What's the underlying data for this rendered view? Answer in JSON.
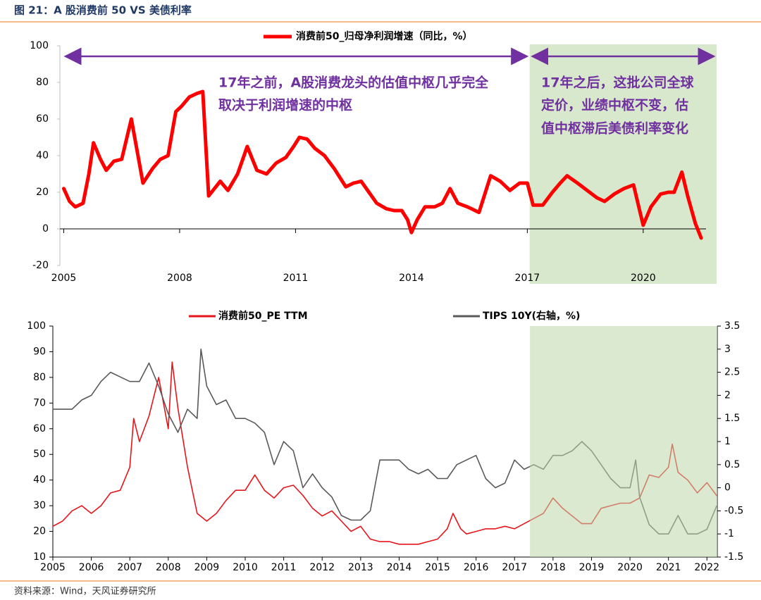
{
  "header": {
    "title": "图 21：A 股消费前 50 VS 美债利率"
  },
  "footer": {
    "source": "资料来源：Wind，天风证券研究所"
  },
  "chart_data": [
    {
      "type": "line",
      "series": [
        {
          "name": "消费前50_归母净利润增速（同比，%）",
          "color": "#ff0000",
          "x": [
            2005.0,
            2005.15,
            2005.3,
            2005.5,
            2005.65,
            2005.77,
            2005.95,
            2006.1,
            2006.3,
            2006.5,
            2006.75,
            2007.05,
            2007.3,
            2007.5,
            2007.7,
            2007.9,
            2008.05,
            2008.25,
            2008.45,
            2008.6,
            2008.75,
            2008.9,
            2009.05,
            2009.25,
            2009.5,
            2009.75,
            2010.0,
            2010.25,
            2010.5,
            2010.75,
            2010.95,
            2011.1,
            2011.3,
            2011.5,
            2011.75,
            2012.0,
            2012.3,
            2012.5,
            2012.7,
            2012.9,
            2013.1,
            2013.35,
            2013.55,
            2013.75,
            2013.9,
            2014.0,
            2014.15,
            2014.35,
            2014.6,
            2014.8,
            2015.0,
            2015.2,
            2015.45,
            2015.75,
            2016.05,
            2016.3,
            2016.55,
            2016.8,
            2017.0,
            2017.15,
            2017.4,
            2017.65,
            2017.85,
            2018.03,
            2018.3,
            2018.55,
            2018.8,
            2019.0,
            2019.25,
            2019.5,
            2019.75,
            2020.0,
            2020.2,
            2020.45,
            2020.65,
            2020.8,
            2021.0,
            2021.15,
            2021.35,
            2021.5
          ],
          "values": [
            22,
            15,
            12,
            14,
            30,
            47,
            38,
            32,
            37,
            38,
            60,
            25,
            33,
            38,
            40,
            64,
            67,
            72,
            74,
            75,
            18,
            22,
            26,
            21,
            30,
            45,
            32,
            30,
            36,
            39,
            45,
            50,
            49,
            44,
            40,
            33,
            23,
            25,
            26,
            20,
            14,
            11,
            10,
            10,
            5,
            -2,
            5,
            12,
            12,
            14,
            22,
            14,
            12,
            9,
            29,
            26,
            21,
            25,
            25,
            13,
            13,
            20,
            25,
            29,
            25,
            21,
            17,
            15,
            19,
            22,
            24,
            2,
            12,
            19,
            20,
            20,
            31,
            18,
            3,
            -5
          ]
        }
      ],
      "xlim": [
        2004.9,
        2021.9
      ],
      "ylim": [
        -20,
        100
      ],
      "xticks": [
        2005,
        2008,
        2011,
        2014,
        2017,
        2020
      ],
      "yticks": [
        -20,
        0,
        20,
        40,
        60,
        80,
        100
      ],
      "highlight": [
        2017.06,
        2021.9
      ],
      "annotations": [
        "17年之前，A股消费龙头的估值中枢几乎完全",
        "取决于利润增速的中枢",
        "17年之后，这批公司全球",
        "定价，业绩中枢不变，估",
        "值中枢滞后美债利率变化"
      ]
    },
    {
      "type": "line",
      "series": [
        {
          "name": "消费前50_PE TTM",
          "color": "#e8141b",
          "x": [
            2005.0,
            2005.25,
            2005.5,
            2005.75,
            2006.0,
            2006.25,
            2006.5,
            2006.75,
            2007.0,
            2007.1,
            2007.25,
            2007.5,
            2007.75,
            2008.0,
            2008.1,
            2008.25,
            2008.5,
            2008.75,
            2009.0,
            2009.25,
            2009.5,
            2009.75,
            2010.0,
            2010.25,
            2010.5,
            2010.75,
            2011.0,
            2011.25,
            2011.5,
            2011.75,
            2012.0,
            2012.25,
            2012.5,
            2012.75,
            2013.0,
            2013.25,
            2013.5,
            2013.75,
            2014.0,
            2014.25,
            2014.5,
            2014.75,
            2015.0,
            2015.25,
            2015.4,
            2015.6,
            2015.75,
            2016.0,
            2016.25,
            2016.5,
            2016.75,
            2017.0,
            2017.25,
            2017.5,
            2017.75,
            2018.0,
            2018.25,
            2018.5,
            2018.75,
            2019.0,
            2019.25,
            2019.5,
            2019.75,
            2020.0,
            2020.25,
            2020.5,
            2020.75,
            2021.0,
            2021.1,
            2021.25,
            2021.5,
            2021.75,
            2022.0,
            2022.25
          ],
          "values": [
            22,
            24,
            28,
            30,
            27,
            30,
            35,
            36,
            45,
            64,
            55,
            65,
            80,
            60,
            86,
            68,
            45,
            27,
            24,
            27,
            32,
            36,
            36,
            42,
            36,
            33,
            37,
            38,
            34,
            29,
            26,
            28,
            24,
            20,
            22,
            17,
            16,
            16,
            15,
            15,
            15,
            16,
            17,
            21,
            27,
            21,
            19,
            20,
            21,
            21,
            22,
            21,
            23,
            25,
            27,
            33,
            29,
            26,
            23,
            23,
            29,
            30,
            31,
            31,
            33,
            42,
            41,
            45,
            54,
            43,
            40,
            35,
            39,
            34
          ]
        },
        {
          "name": "TIPS 10Y(右轴，%)",
          "color": "#595959",
          "axis": "y2",
          "x": [
            2005.0,
            2005.25,
            2005.5,
            2005.75,
            2006.0,
            2006.25,
            2006.5,
            2006.75,
            2007.0,
            2007.25,
            2007.5,
            2007.75,
            2008.0,
            2008.25,
            2008.5,
            2008.75,
            2008.85,
            2009.0,
            2009.25,
            2009.5,
            2009.75,
            2010.0,
            2010.25,
            2010.5,
            2010.75,
            2011.0,
            2011.25,
            2011.5,
            2011.75,
            2012.0,
            2012.25,
            2012.5,
            2012.75,
            2013.0,
            2013.25,
            2013.5,
            2013.75,
            2014.0,
            2014.25,
            2014.5,
            2014.75,
            2015.0,
            2015.25,
            2015.5,
            2015.75,
            2016.0,
            2016.25,
            2016.5,
            2016.75,
            2017.0,
            2017.25,
            2017.5,
            2017.75,
            2018.0,
            2018.25,
            2018.5,
            2018.75,
            2019.0,
            2019.25,
            2019.5,
            2019.75,
            2020.0,
            2020.15,
            2020.25,
            2020.5,
            2020.75,
            2021.0,
            2021.25,
            2021.5,
            2021.75,
            2022.0,
            2022.25
          ],
          "values": [
            1.7,
            1.7,
            1.7,
            1.9,
            2.0,
            2.3,
            2.5,
            2.4,
            2.3,
            2.3,
            2.7,
            2.2,
            1.6,
            1.2,
            1.7,
            1.5,
            3.0,
            2.2,
            1.8,
            1.9,
            1.5,
            1.5,
            1.4,
            1.2,
            0.5,
            1.0,
            0.8,
            0.0,
            0.3,
            0.0,
            -0.2,
            -0.6,
            -0.7,
            -0.7,
            -0.5,
            0.6,
            0.6,
            0.6,
            0.4,
            0.3,
            0.4,
            0.2,
            0.2,
            0.5,
            0.6,
            0.7,
            0.2,
            0.0,
            0.1,
            0.6,
            0.4,
            0.5,
            0.4,
            0.7,
            0.7,
            0.8,
            1.0,
            0.8,
            0.5,
            0.2,
            0.0,
            0.0,
            0.6,
            -0.2,
            -0.8,
            -1.0,
            -1.0,
            -0.6,
            -1.0,
            -1.0,
            -0.9,
            -0.4
          ]
        }
      ],
      "xlim": [
        2005,
        2022.27
      ],
      "ylim": [
        10,
        100
      ],
      "y2lim": [
        -1.5,
        3.5
      ],
      "xticks": [
        2005,
        2006,
        2007,
        2008,
        2009,
        2010,
        2011,
        2012,
        2013,
        2014,
        2015,
        2016,
        2017,
        2018,
        2019,
        2020,
        2021,
        2022
      ],
      "yticks": [
        10,
        20,
        30,
        40,
        50,
        60,
        70,
        80,
        90,
        100
      ],
      "y2ticks": [
        -1.5,
        -1,
        -0.5,
        0,
        0.5,
        1,
        1.5,
        2,
        2.5,
        3,
        3.5
      ],
      "highlight": [
        2017.4,
        2022.27
      ]
    }
  ]
}
